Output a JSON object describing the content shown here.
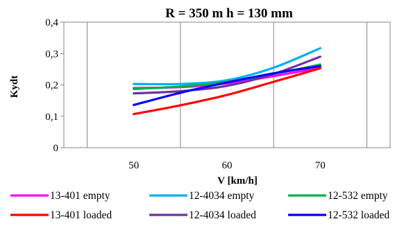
{
  "chart_data": {
    "type": "line",
    "title": "R = 350 m  h = 130 mm",
    "xlabel": "V [km/h]",
    "ylabel": "Kydt",
    "xlim": [
      42.5,
      77.5
    ],
    "ylim": [
      0,
      0.4
    ],
    "x_ticks": [
      50,
      60,
      70
    ],
    "y_ticks": [
      0,
      0.1,
      0.2,
      0.3,
      0.4
    ],
    "y_tick_labels": [
      "0",
      "0,1",
      "0,2",
      "0,3",
      "0,4"
    ],
    "grid": "vertical",
    "legend_position": "bottom",
    "series": [
      {
        "name": "13-401 empty",
        "color": "#ff00ff",
        "x": [
          50,
          55,
          60,
          65,
          70
        ],
        "y": [
          0.19,
          0.193,
          0.205,
          0.228,
          0.255
        ]
      },
      {
        "name": "12-4034 empty",
        "color": "#00b0f0",
        "x": [
          50,
          55,
          60,
          65,
          70
        ],
        "y": [
          0.203,
          0.203,
          0.215,
          0.255,
          0.317
        ]
      },
      {
        "name": "12-532 empty",
        "color": "#00b050",
        "x": [
          50,
          55,
          60,
          65,
          70
        ],
        "y": [
          0.187,
          0.195,
          0.21,
          0.235,
          0.265
        ]
      },
      {
        "name": "13-401 loaded",
        "color": "#ff0000",
        "x": [
          50,
          55,
          60,
          65,
          70
        ],
        "y": [
          0.107,
          0.135,
          0.168,
          0.21,
          0.253
        ]
      },
      {
        "name": "12-4034 loaded",
        "color": "#7030a0",
        "x": [
          50,
          55,
          60,
          65,
          70
        ],
        "y": [
          0.173,
          0.18,
          0.197,
          0.235,
          0.29
        ]
      },
      {
        "name": "12-532 loaded",
        "color": "#0000ff",
        "x": [
          50,
          55,
          60,
          65,
          70
        ],
        "y": [
          0.136,
          0.175,
          0.208,
          0.237,
          0.26
        ]
      }
    ]
  }
}
